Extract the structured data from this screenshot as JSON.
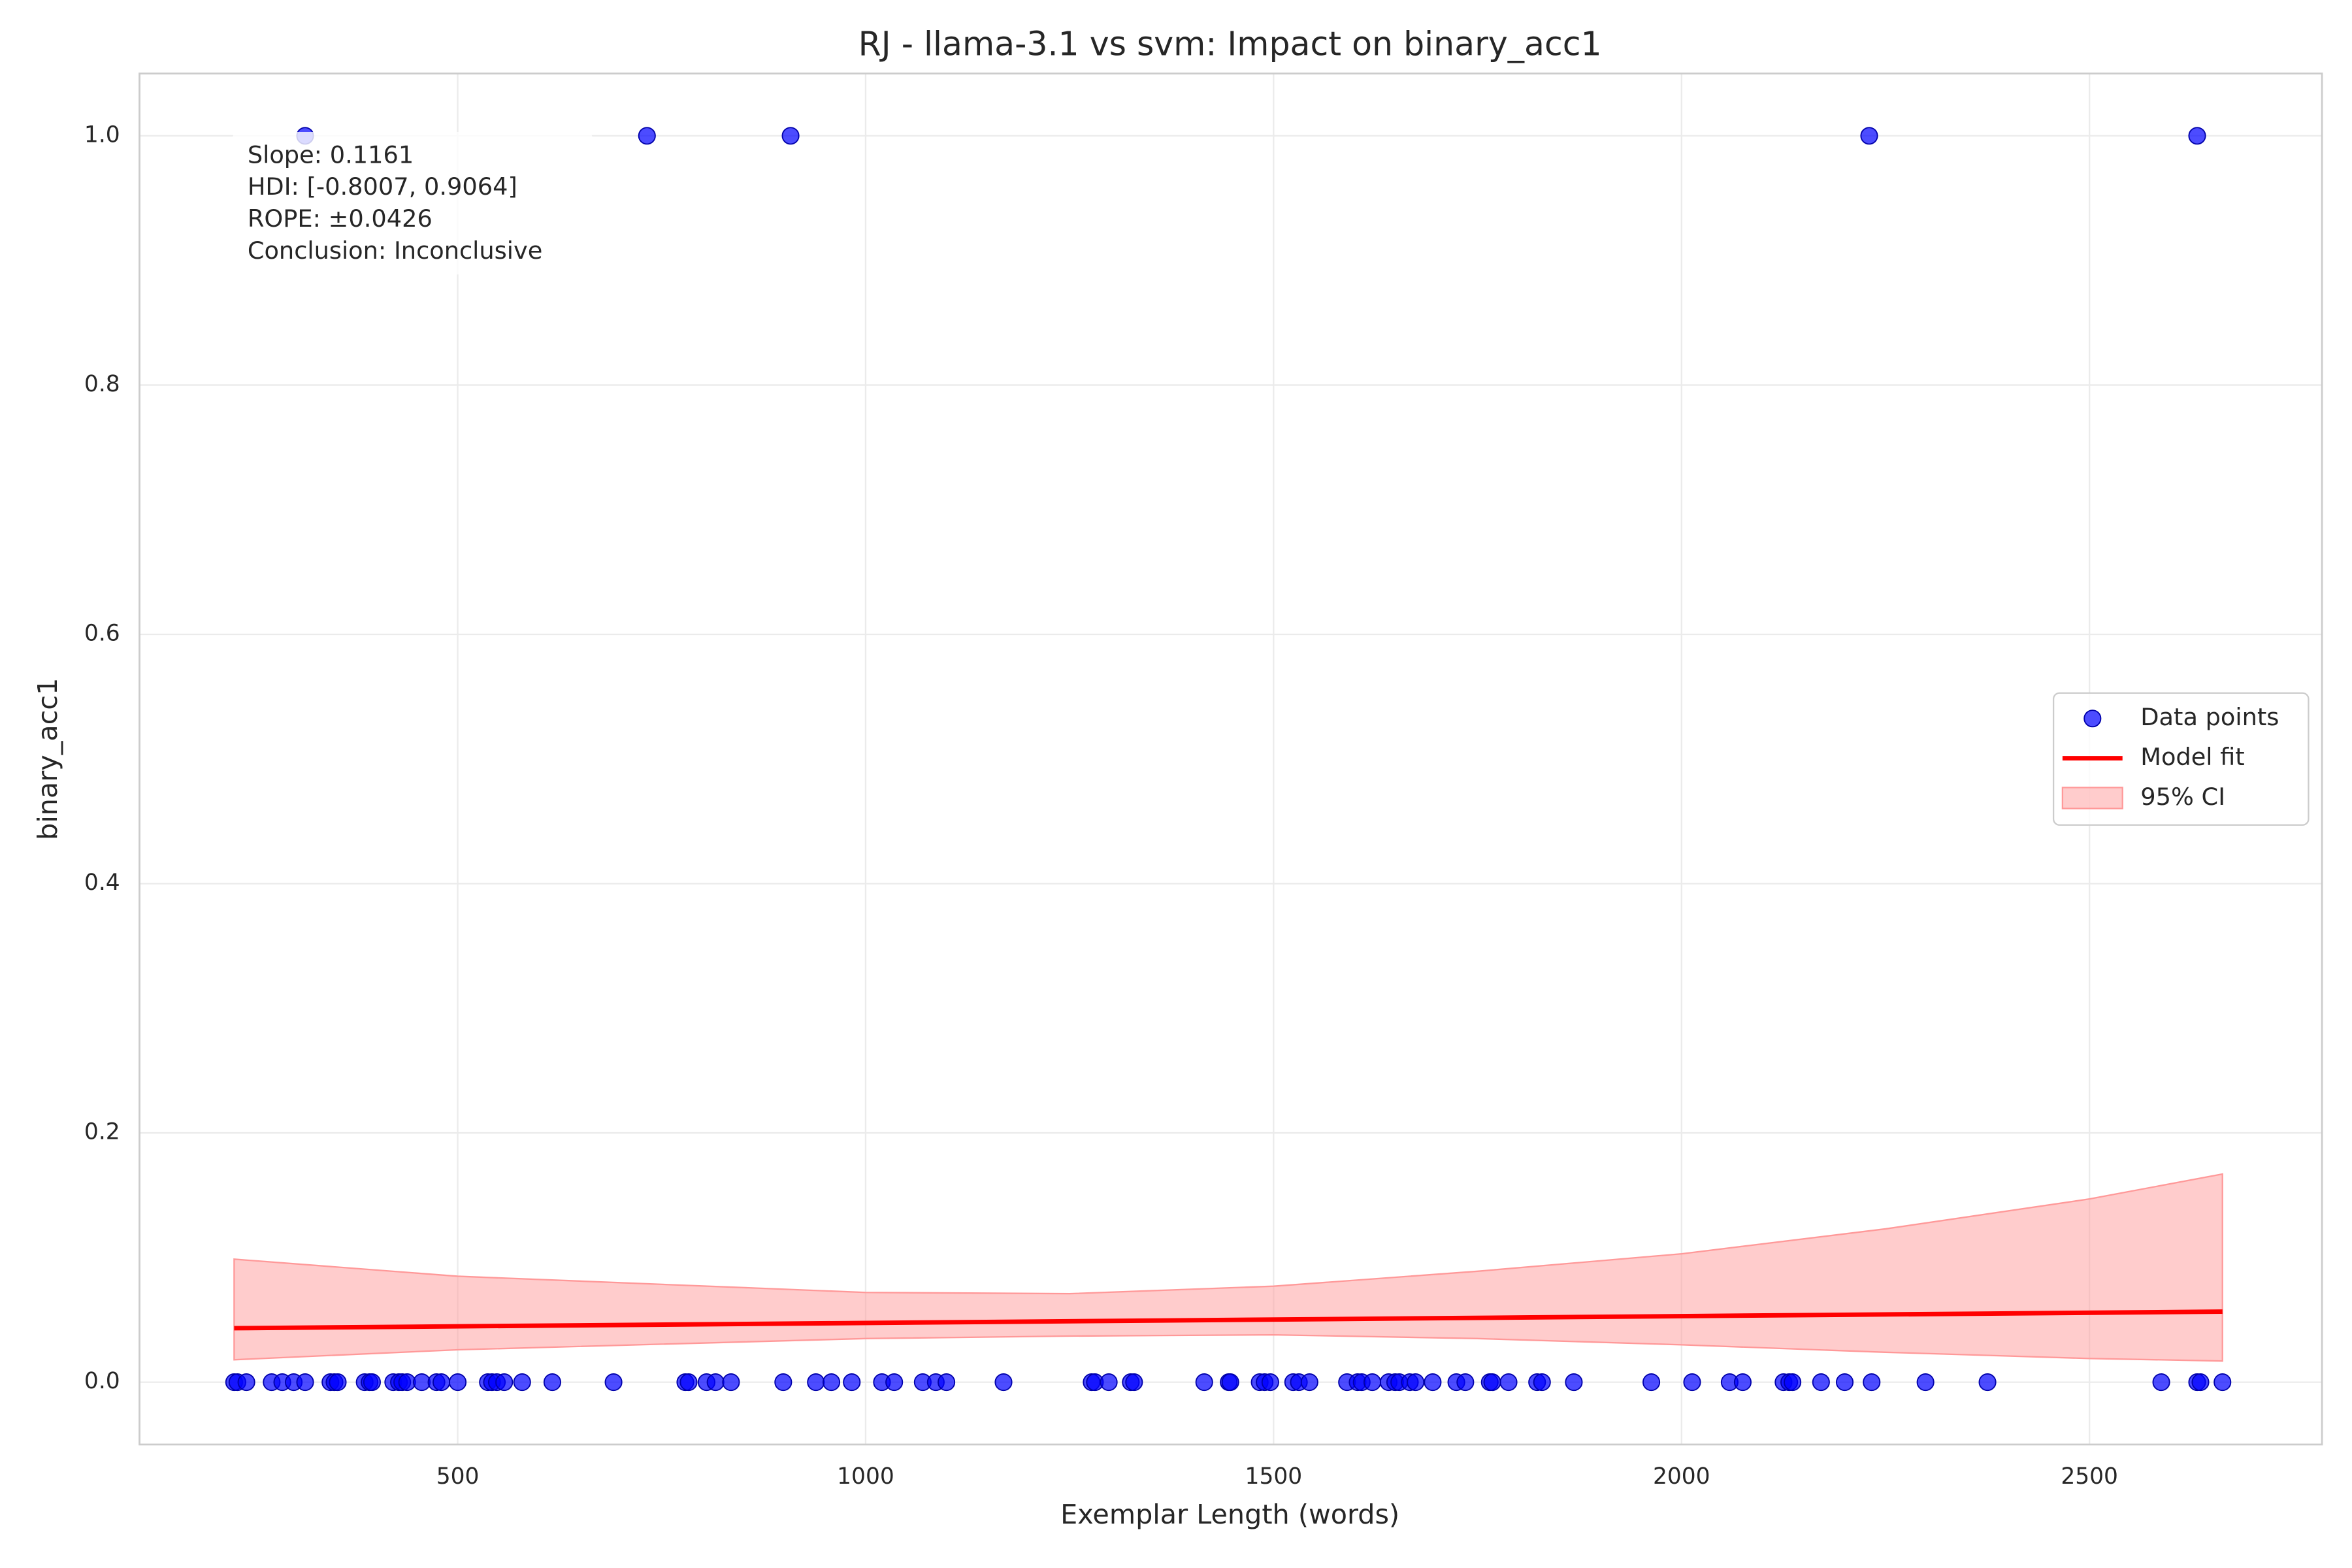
{
  "chart_data": {
    "type": "scatter",
    "title": "RJ - llama-3.1 vs svm: Impact on binary_acc1",
    "xlabel": "Exemplar Length (words)",
    "ylabel": "binary_acc1",
    "xlim": [
      110,
      2785
    ],
    "ylim": [
      -0.05,
      1.05
    ],
    "xticks": [
      500,
      1000,
      1500,
      2000,
      2500
    ],
    "yticks": [
      {
        "value": 0,
        "label": "0.0"
      },
      0.2,
      0.4,
      0.6,
      0.8,
      {
        "value": 1,
        "label": "1.0"
      }
    ],
    "grid": true,
    "legend": "center right",
    "annotation": [
      "Slope: 0.1161",
      "HDI: [-0.8007, 0.9064]",
      "ROPE: ±0.0426",
      "Conclusion: Inconclusive"
    ],
    "series": [
      {
        "name": "Data points",
        "type": "scatter",
        "color": "#0000ff",
        "x": [
          313,
          732,
          908,
          2230,
          2632,
          226,
          230,
          241,
          272,
          285,
          299,
          313,
          344,
          349,
          353,
          386,
          392,
          395,
          421,
          428,
          432,
          438,
          456,
          474,
          480,
          500,
          537,
          542,
          548,
          557,
          579,
          616,
          691,
          779,
          783,
          805,
          816,
          835,
          899,
          939,
          958,
          983,
          1020,
          1035,
          1070,
          1086,
          1099,
          1169,
          1277,
          1281,
          1298,
          1325,
          1329,
          1415,
          1445,
          1447,
          1483,
          1489,
          1496,
          1524,
          1531,
          1544,
          1590,
          1603,
          1608,
          1621,
          1641,
          1649,
          1654,
          1667,
          1674,
          1695,
          1724,
          1735,
          1765,
          1768,
          1788,
          1823,
          1829,
          1868,
          1963,
          2013,
          2059,
          2075,
          2125,
          2132,
          2136,
          2171,
          2200,
          2233,
          2299,
          2375,
          2588,
          2632,
          2636,
          2663
        ],
        "values": [
          1,
          1,
          1,
          1,
          1,
          0,
          0,
          0,
          0,
          0,
          0,
          0,
          0,
          0,
          0,
          0,
          0,
          0,
          0,
          0,
          0,
          0,
          0,
          0,
          0,
          0,
          0,
          0,
          0,
          0,
          0,
          0,
          0,
          0,
          0,
          0,
          0,
          0,
          0,
          0,
          0,
          0,
          0,
          0,
          0,
          0,
          0,
          0,
          0,
          0,
          0,
          0,
          0,
          0,
          0,
          0,
          0,
          0,
          0,
          0,
          0,
          0,
          0,
          0,
          0,
          0,
          0,
          0,
          0,
          0,
          0,
          0,
          0,
          0,
          0,
          0,
          0,
          0,
          0,
          0,
          0,
          0,
          0,
          0,
          0,
          0,
          0,
          0,
          0,
          0,
          0,
          0,
          0,
          0,
          0,
          0
        ]
      },
      {
        "name": "Model fit",
        "type": "line",
        "color": "#ff0000",
        "x": [
          226,
          2663
        ],
        "values": [
          0.0433,
          0.0566
        ]
      },
      {
        "name": "95% CI",
        "type": "band",
        "color": "#ff9999",
        "x": [
          226,
          500,
          1000,
          1250,
          1500,
          1750,
          2000,
          2250,
          2500,
          2663
        ],
        "lower": [
          0.018,
          0.026,
          0.035,
          0.037,
          0.038,
          0.035,
          0.03,
          0.024,
          0.019,
          0.017
        ],
        "upper": [
          0.0987,
          0.085,
          0.072,
          0.071,
          0.077,
          0.089,
          0.103,
          0.123,
          0.147,
          0.167
        ]
      }
    ]
  }
}
